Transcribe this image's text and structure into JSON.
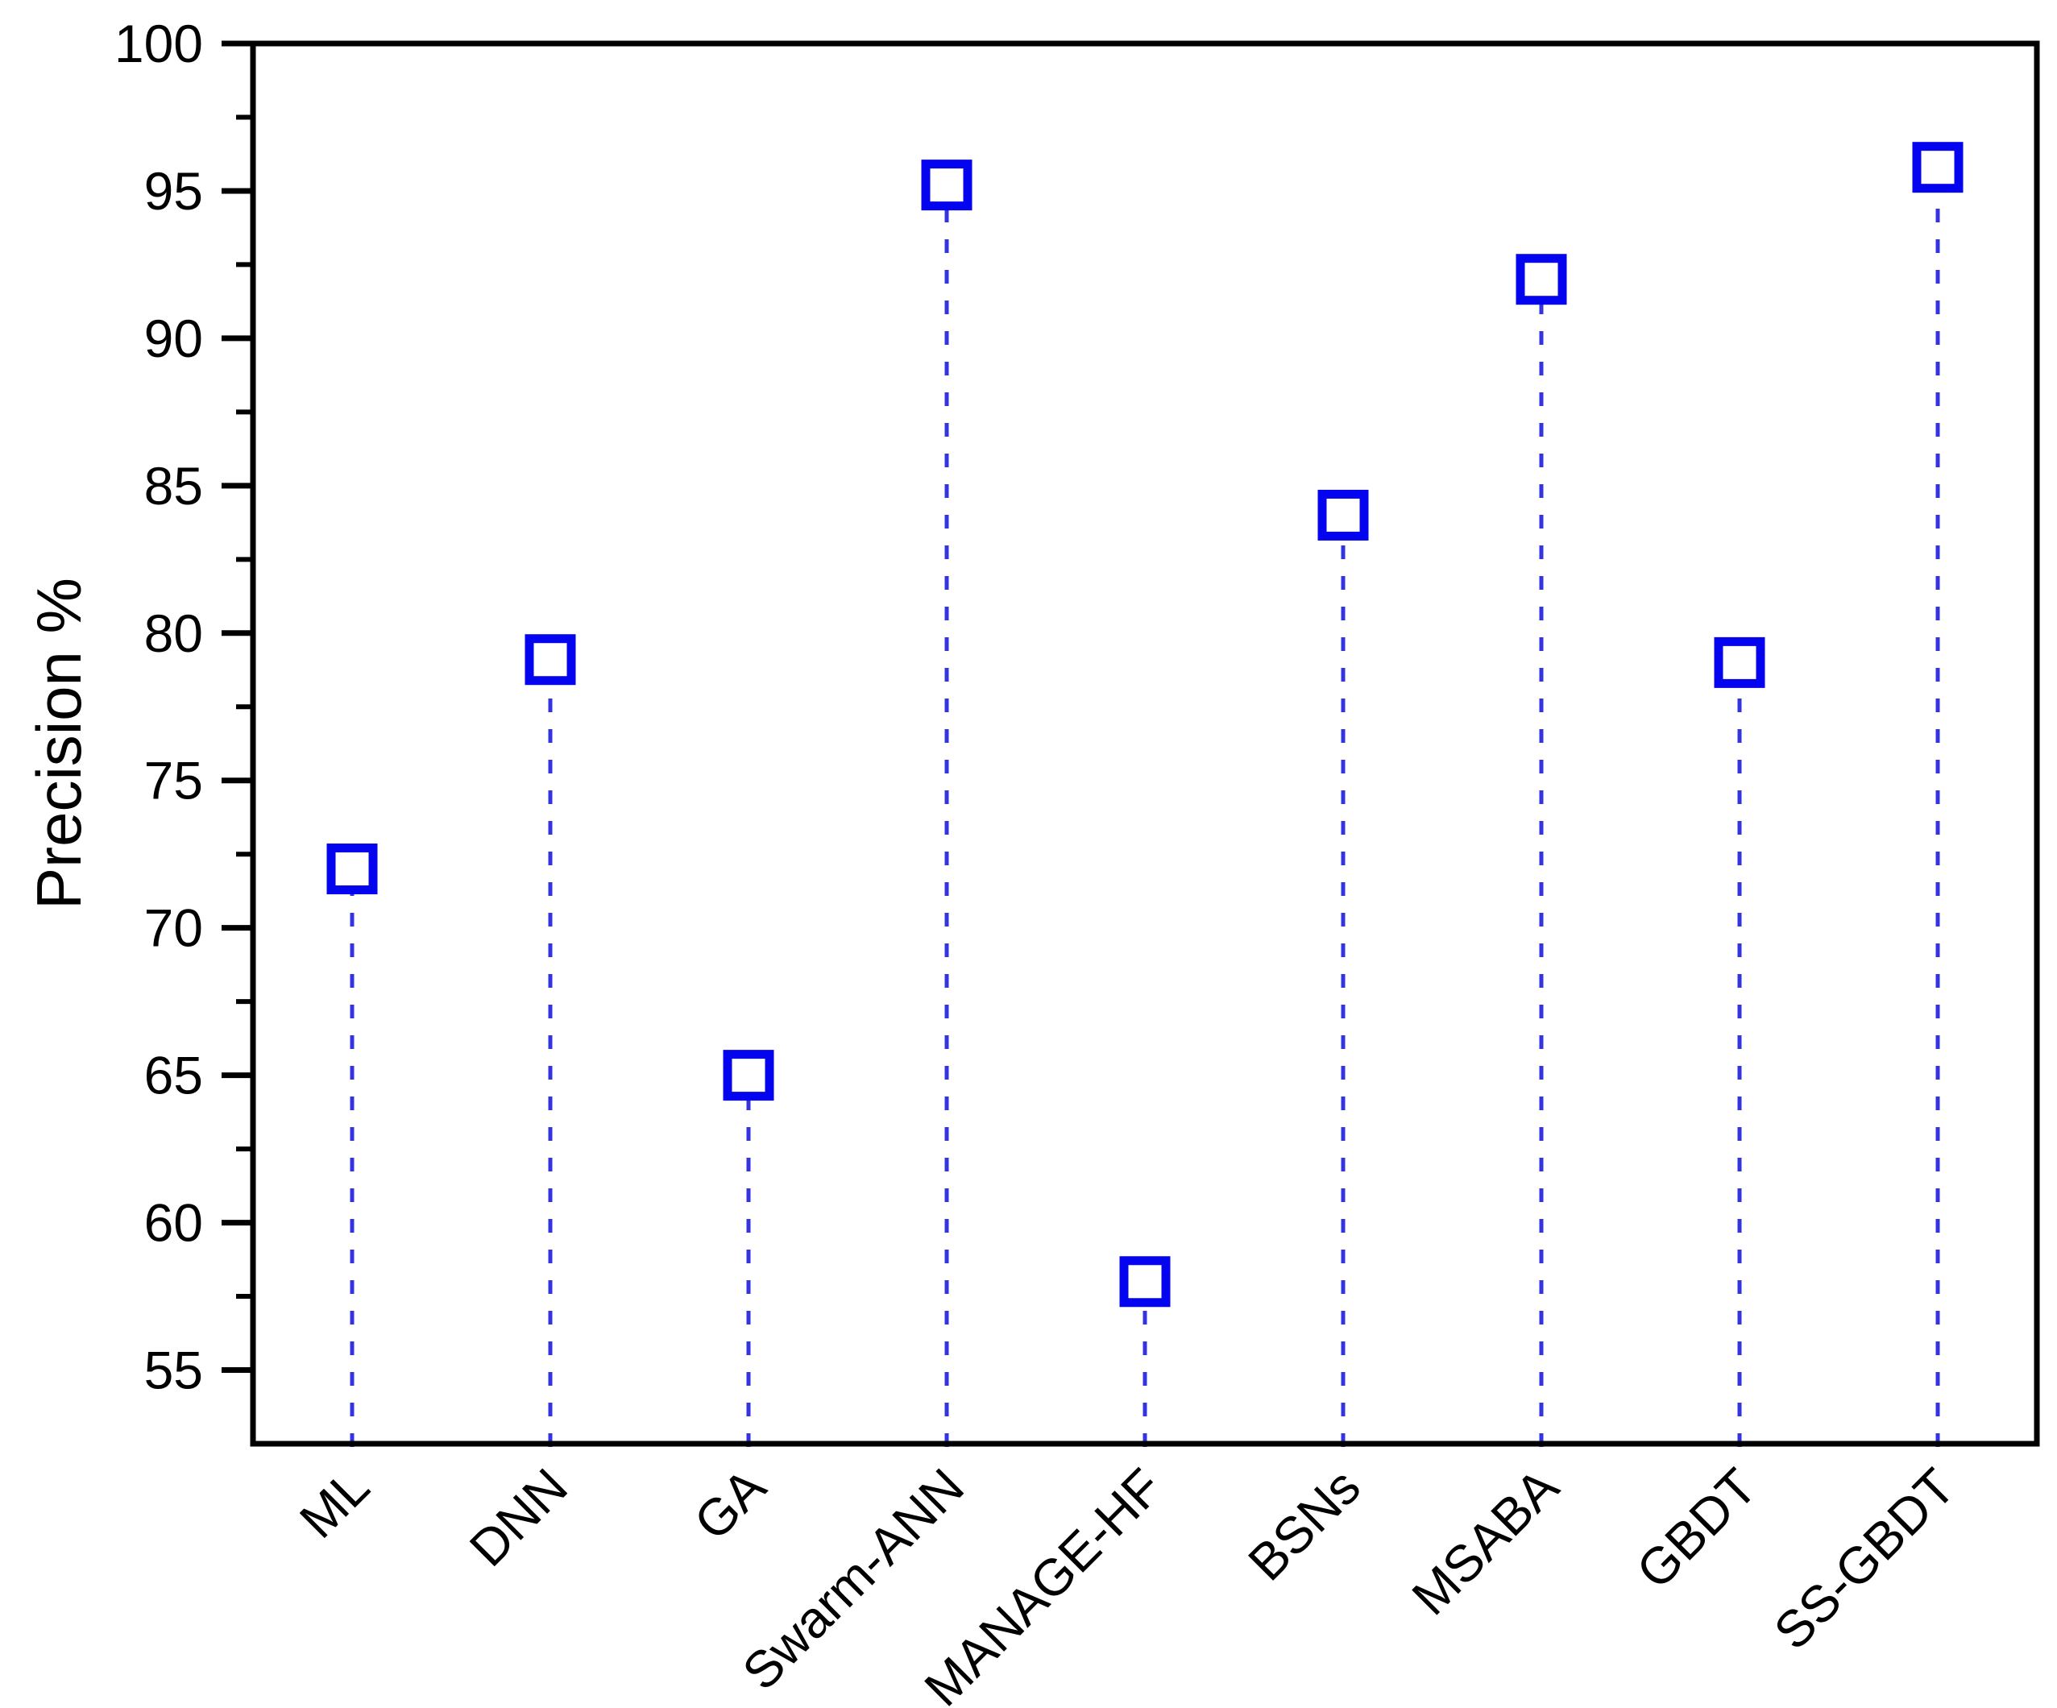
{
  "chart_data": {
    "type": "scatter",
    "subtype": "stem-lollipop: open square markers on dashed vertical stems rising from the x-axis",
    "title": "",
    "xlabel": "",
    "ylabel": "Precision %",
    "categories": [
      "ML",
      "DNN",
      "GA",
      "Swarm-ANN",
      "MANAGE-HF",
      "BSNs",
      "MSABA",
      "GBDT",
      "SS-GBDT"
    ],
    "values": [
      72,
      79.1,
      65,
      95.2,
      58,
      84,
      92,
      79,
      95.8
    ],
    "ylim": [
      52.5,
      100
    ],
    "yticks_major": [
      55,
      60,
      65,
      70,
      75,
      80,
      85,
      90,
      95,
      100
    ],
    "yticks_minor": [
      57.5,
      62.5,
      67.5,
      72.5,
      77.5,
      82.5,
      87.5,
      92.5,
      97.5
    ],
    "x_tick_label_rotation_deg": 45,
    "grid": false,
    "legend": null,
    "colors": {
      "marker_stroke": "#0404ee",
      "marker_fill": "#ffffff",
      "stem": "#3333e0",
      "axis": "#000000",
      "text": "#000000",
      "background": "#ffffff"
    }
  }
}
